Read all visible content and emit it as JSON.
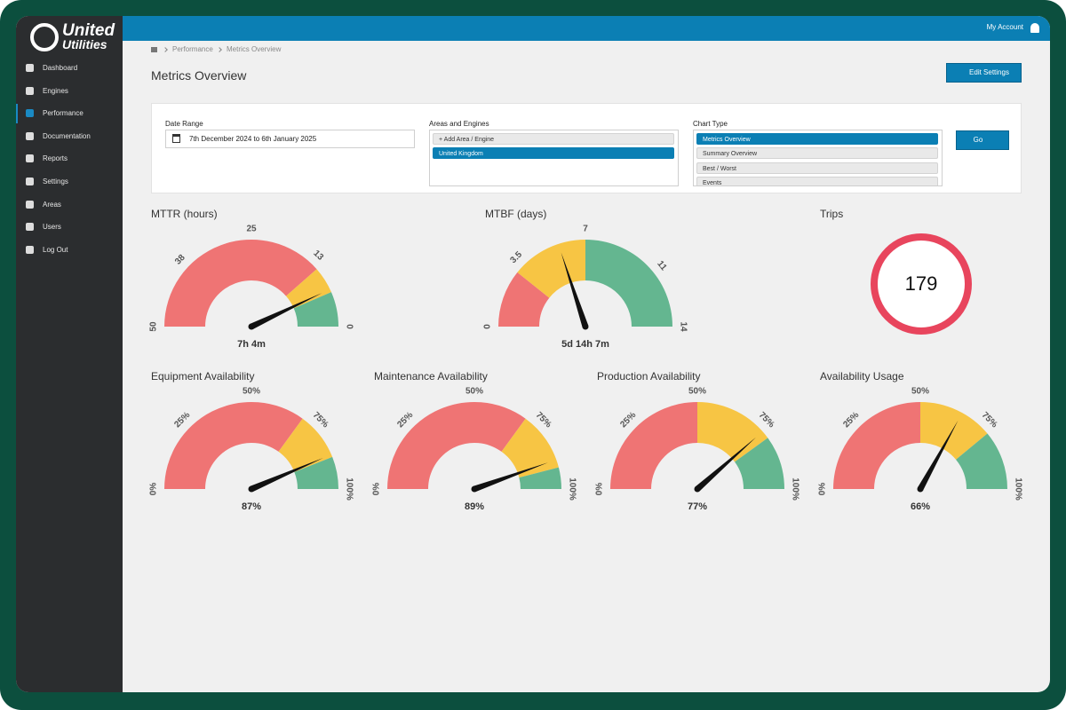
{
  "logo": {
    "line1": "United",
    "line2": "Utilities"
  },
  "nav": [
    "Dashboard",
    "Engines",
    "Performance",
    "Documentation",
    "Reports",
    "Settings",
    "Areas",
    "Users",
    "Log Out"
  ],
  "nav_active": 2,
  "header": {
    "account": "My Account"
  },
  "breadcrumb": [
    "Performance",
    "Metrics Overview"
  ],
  "page_title": "Metrics Overview",
  "edit_button": "Edit Settings",
  "filters": {
    "date_range": {
      "label": "Date Range",
      "value": "7th December 2024 to 6th January 2025"
    },
    "areas": {
      "label": "Areas and Engines",
      "items": [
        "+ Add Area / Engine",
        "United Kingdom"
      ],
      "selected": 1
    },
    "chart_type": {
      "label": "Chart Type",
      "items": [
        "Metrics Overview",
        "Summary Overview",
        "Best / Worst",
        "Events"
      ],
      "selected": 0
    },
    "go": "Go"
  },
  "chart_data": [
    {
      "type": "gauge",
      "title": "MTTR (hours)",
      "xlim": [
        50,
        0
      ],
      "xticks": [
        50,
        38,
        25,
        13,
        0
      ],
      "bands": [
        {
          "from": 50,
          "to": 11.5,
          "color": "#ef7474"
        },
        {
          "from": 11.5,
          "to": 6.5,
          "color": "#f7c544"
        },
        {
          "from": 6.5,
          "to": 0,
          "color": "#64b690"
        }
      ],
      "values": [
        7.07
      ],
      "value_labels": [
        "7h 4m"
      ]
    },
    {
      "type": "gauge",
      "title": "MTBF (days)",
      "xlim": [
        0,
        14
      ],
      "xticks": [
        0,
        3.5,
        7,
        11,
        14
      ],
      "bands": [
        {
          "from": 0,
          "to": 3,
          "color": "#ef7474"
        },
        {
          "from": 3,
          "to": 7,
          "color": "#f7c544"
        },
        {
          "from": 7,
          "to": 14,
          "color": "#64b690"
        }
      ],
      "values": [
        5.59
      ],
      "value_labels": [
        "5d 14h 7m"
      ]
    },
    {
      "type": "gauge",
      "title": "Equipment Availability",
      "xlim": [
        0,
        100
      ],
      "xticks": [
        {
          "value": 0,
          "label": "0%"
        },
        {
          "value": 25,
          "label": "25%"
        },
        {
          "value": 50,
          "label": "50%"
        },
        {
          "value": 75,
          "label": "75%"
        },
        {
          "value": 100,
          "label": "100%"
        }
      ],
      "bands": [
        {
          "from": 0,
          "to": 70,
          "color": "#ef7474"
        },
        {
          "from": 70,
          "to": 88,
          "color": "#f7c544"
        },
        {
          "from": 88,
          "to": 100,
          "color": "#64b690"
        }
      ],
      "values": [
        87
      ],
      "value_labels": [
        "87%"
      ]
    },
    {
      "type": "gauge",
      "title": "Maintenance Availability",
      "xlim": [
        0,
        100
      ],
      "xticks": [
        {
          "value": 0,
          "label": "0%"
        },
        {
          "value": 25,
          "label": "25%"
        },
        {
          "value": 50,
          "label": "50%"
        },
        {
          "value": 75,
          "label": "75%"
        },
        {
          "value": 100,
          "label": "100%"
        }
      ],
      "bands": [
        {
          "from": 0,
          "to": 70,
          "color": "#ef7474"
        },
        {
          "from": 70,
          "to": 92,
          "color": "#f7c544"
        },
        {
          "from": 92,
          "to": 100,
          "color": "#64b690"
        }
      ],
      "values": [
        89
      ],
      "value_labels": [
        "89%"
      ]
    },
    {
      "type": "gauge",
      "title": "Production Availability",
      "xlim": [
        0,
        100
      ],
      "xticks": [
        {
          "value": 0,
          "label": "0%"
        },
        {
          "value": 25,
          "label": "25%"
        },
        {
          "value": 50,
          "label": "50%"
        },
        {
          "value": 75,
          "label": "75%"
        },
        {
          "value": 100,
          "label": "100%"
        }
      ],
      "bands": [
        {
          "from": 0,
          "to": 50,
          "color": "#ef7474"
        },
        {
          "from": 50,
          "to": 80,
          "color": "#f7c544"
        },
        {
          "from": 80,
          "to": 100,
          "color": "#64b690"
        }
      ],
      "values": [
        77
      ],
      "value_labels": [
        "77%"
      ]
    },
    {
      "type": "gauge",
      "title": "Availability Usage",
      "xlim": [
        0,
        100
      ],
      "xticks": [
        {
          "value": 0,
          "label": "0%"
        },
        {
          "value": 25,
          "label": "25%"
        },
        {
          "value": 50,
          "label": "50%"
        },
        {
          "value": 75,
          "label": "75%"
        },
        {
          "value": 100,
          "label": "100%"
        }
      ],
      "bands": [
        {
          "from": 0,
          "to": 50,
          "color": "#ef7474"
        },
        {
          "from": 50,
          "to": 78,
          "color": "#f7c544"
        },
        {
          "from": 78,
          "to": 100,
          "color": "#64b690"
        }
      ],
      "values": [
        66
      ],
      "value_labels": [
        "66%"
      ]
    }
  ],
  "trips": {
    "title": "Trips",
    "value": 179,
    "color": "#e8455d"
  }
}
